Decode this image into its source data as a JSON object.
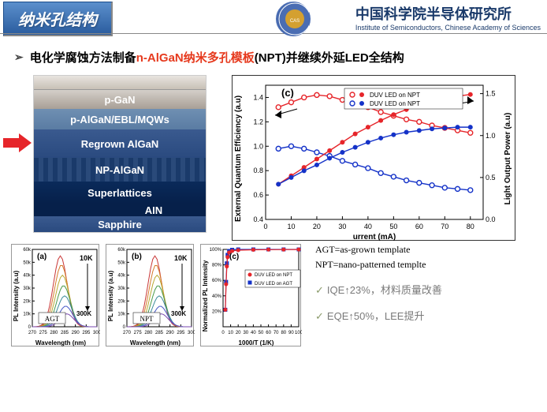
{
  "header": {
    "title": "纳米孔结构",
    "institute_cn": "中国科学院半导体研究所",
    "institute_en": "Institute of Semiconductors, Chinese Academy of Sciences"
  },
  "bullet": {
    "prefix": "电化学腐蚀方法制备",
    "highlight": "n-AlGaN纳米多孔模板",
    "suffix": "(NPT)并继续外延LED全结构"
  },
  "stack": {
    "layers": [
      "p-GaN",
      "p-AlGaN/EBL/MQWs",
      "Regrown AlGaN",
      "NP-AlGaN",
      "Superlattices",
      "AIN",
      "Sapphire"
    ]
  },
  "chart_c": {
    "label": "(c)",
    "legend": [
      "DUV LED on NPT",
      "DUV LED on NPT"
    ],
    "xlabel": "urrent (mA)",
    "ylabel_left": "External Quantum Efficiency (a.u)",
    "ylabel_right": "Light Output Power (a.u)",
    "xticks": [
      "0",
      "10",
      "20",
      "30",
      "40",
      "50",
      "60",
      "70",
      "80"
    ],
    "yticks_left": [
      "0.4",
      "0.6",
      "0.8",
      "1.0",
      "1.2",
      "1.4"
    ],
    "yticks_right": [
      "0.0",
      "0.5",
      "1.0",
      "1.5"
    ],
    "colors": {
      "red": "#e6252a",
      "blue": "#1432c8",
      "grid": "#f0f0f0"
    },
    "red_open": [
      [
        5,
        1.32
      ],
      [
        10,
        1.36
      ],
      [
        15,
        1.4
      ],
      [
        20,
        1.42
      ],
      [
        25,
        1.41
      ],
      [
        30,
        1.38
      ],
      [
        35,
        1.35
      ],
      [
        40,
        1.32
      ],
      [
        45,
        1.28
      ],
      [
        50,
        1.25
      ],
      [
        55,
        1.22
      ],
      [
        60,
        1.2
      ],
      [
        65,
        1.17
      ],
      [
        70,
        1.15
      ],
      [
        75,
        1.13
      ],
      [
        80,
        1.11
      ]
    ],
    "blue_open": [
      [
        5,
        0.98
      ],
      [
        10,
        1.0
      ],
      [
        15,
        0.98
      ],
      [
        20,
        0.95
      ],
      [
        25,
        0.92
      ],
      [
        30,
        0.88
      ],
      [
        35,
        0.85
      ],
      [
        40,
        0.82
      ],
      [
        45,
        0.78
      ],
      [
        50,
        0.75
      ],
      [
        55,
        0.72
      ],
      [
        60,
        0.7
      ],
      [
        65,
        0.68
      ],
      [
        70,
        0.66
      ],
      [
        75,
        0.65
      ],
      [
        80,
        0.64
      ]
    ],
    "red_solid": [
      [
        5,
        0.42
      ],
      [
        10,
        0.52
      ],
      [
        15,
        0.62
      ],
      [
        20,
        0.72
      ],
      [
        25,
        0.82
      ],
      [
        30,
        0.92
      ],
      [
        35,
        1.02
      ],
      [
        40,
        1.1
      ],
      [
        45,
        1.18
      ],
      [
        50,
        1.25
      ],
      [
        55,
        1.31
      ],
      [
        60,
        1.37
      ],
      [
        65,
        1.41
      ],
      [
        70,
        1.45
      ],
      [
        75,
        1.47
      ],
      [
        80,
        1.49
      ]
    ],
    "blue_solid": [
      [
        5,
        0.42
      ],
      [
        10,
        0.5
      ],
      [
        15,
        0.58
      ],
      [
        20,
        0.65
      ],
      [
        25,
        0.73
      ],
      [
        30,
        0.8
      ],
      [
        35,
        0.86
      ],
      [
        40,
        0.92
      ],
      [
        45,
        0.97
      ],
      [
        50,
        1.01
      ],
      [
        55,
        1.04
      ],
      [
        60,
        1.06
      ],
      [
        65,
        1.08
      ],
      [
        70,
        1.09
      ],
      [
        75,
        1.1
      ],
      [
        80,
        1.1
      ]
    ]
  },
  "mini_a": {
    "label": "(a)",
    "temp_hi": "10K",
    "temp_lo": "300K",
    "tag": "AGT",
    "xlabel": "Wavelength (nm)",
    "ylabel": "PL Intensity (a.u)",
    "xticks": [
      "270",
      "275",
      "280",
      "285",
      "290",
      "295",
      "300"
    ],
    "yticks": [
      "0",
      "10k",
      "20k",
      "30k",
      "40k",
      "50k",
      "60k"
    ],
    "colors": [
      "#c93636",
      "#d67a2a",
      "#b8a830",
      "#4a9a4a",
      "#3a8a9a",
      "#4a5ac8",
      "#7a4ab0"
    ]
  },
  "mini_b": {
    "label": "(b)",
    "temp_hi": "10K",
    "temp_lo": "300K",
    "tag": "NPT",
    "xlabel": "Wavelength (nm)",
    "ylabel": "PL Intensity (a.u)",
    "xticks": [
      "270",
      "275",
      "280",
      "285",
      "290",
      "295",
      "300"
    ],
    "yticks": [
      "0",
      "10k",
      "20k",
      "30k",
      "40k",
      "50k",
      "60k"
    ]
  },
  "mini_c": {
    "label": "(c)",
    "legend": [
      "DUV LED on NPT",
      "DUV LED on AGT"
    ],
    "xlabel": "1000/T (1/K)",
    "ylabel": "Normalized PL Intensity",
    "xticks": [
      "0",
      "10",
      "20",
      "30",
      "40",
      "50",
      "60",
      "70",
      "80",
      "90",
      "100"
    ],
    "yticks": [
      "20%",
      "40%",
      "60%",
      "80%",
      "100%"
    ],
    "colors": {
      "red": "#e6252a",
      "blue": "#1432c8"
    }
  },
  "info": {
    "def1": "AGT=as-grown template",
    "def2": "NPT=nano-patterned templte",
    "check1": "IQE↑23%，材料质量改善",
    "check2": "EQE↑50%，LEE提升"
  }
}
